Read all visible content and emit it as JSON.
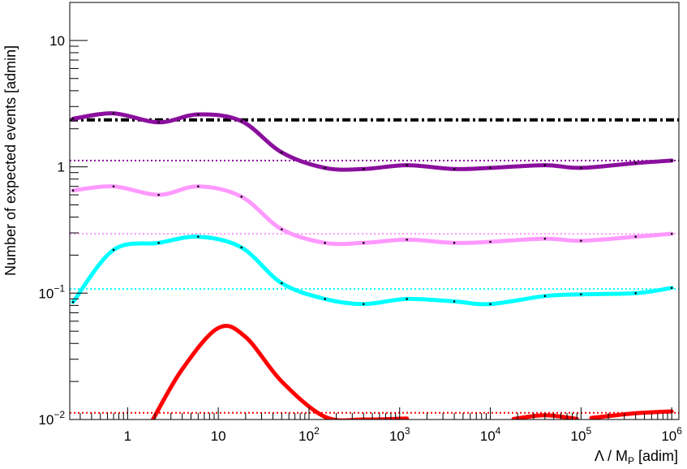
{
  "chart_data": {
    "type": "line",
    "title": "",
    "xlabel": {
      "main": "Λ / M",
      "sub": "P",
      "unit": " [adim]"
    },
    "ylabel": "Number of expected events [admin]",
    "xscale": "log",
    "yscale": "log",
    "xlim": [
      0.23,
      1200000
    ],
    "ylim": [
      0.01,
      20
    ],
    "grid": false,
    "legend": "none",
    "x_tick_labels": [
      {
        "x": 1,
        "base": "1",
        "exp": ""
      },
      {
        "x": 10,
        "base": "10",
        "exp": ""
      },
      {
        "x": 100,
        "base": "10",
        "exp": "2"
      },
      {
        "x": 1000,
        "base": "10",
        "exp": "3"
      },
      {
        "x": 10000,
        "base": "10",
        "exp": "4"
      },
      {
        "x": 100000,
        "base": "10",
        "exp": "5"
      },
      {
        "x": 1000000,
        "base": "10",
        "exp": "6"
      }
    ],
    "y_tick_labels": [
      {
        "y": 0.01,
        "base": "10",
        "exp": "−2"
      },
      {
        "y": 0.1,
        "base": "10",
        "exp": "−1"
      },
      {
        "y": 1,
        "base": "1",
        "exp": ""
      },
      {
        "y": 10,
        "base": "10",
        "exp": ""
      }
    ],
    "series": [
      {
        "color": "#8b0f9e",
        "style": "solid",
        "x": [
          0.25,
          0.7,
          2.2,
          6,
          18,
          50,
          150,
          400,
          1200,
          4000,
          10000,
          40000,
          100000,
          400000,
          1000000
        ],
        "y": [
          2.4,
          2.65,
          2.25,
          2.6,
          2.3,
          1.3,
          0.98,
          0.96,
          1.03,
          0.96,
          0.98,
          1.03,
          0.98,
          1.07,
          1.12
        ]
      },
      {
        "color": "#ff99ff",
        "style": "solid",
        "x": [
          0.25,
          0.7,
          2.2,
          6,
          18,
          50,
          150,
          400,
          1200,
          4000,
          10000,
          40000,
          100000,
          400000,
          1000000
        ],
        "y": [
          0.65,
          0.7,
          0.6,
          0.7,
          0.58,
          0.32,
          0.25,
          0.25,
          0.265,
          0.25,
          0.255,
          0.27,
          0.26,
          0.28,
          0.295
        ]
      },
      {
        "color": "#00ffff",
        "style": "solid",
        "x": [
          0.25,
          0.7,
          2.2,
          6,
          18,
          50,
          150,
          400,
          1200,
          4000,
          10000,
          40000,
          100000,
          400000,
          1000000
        ],
        "y": [
          0.085,
          0.22,
          0.25,
          0.28,
          0.23,
          0.12,
          0.09,
          0.082,
          0.09,
          0.086,
          0.082,
          0.095,
          0.098,
          0.1,
          0.11
        ]
      },
      {
        "color": "#ff0000",
        "style": "solid",
        "x": [
          1.9,
          4,
          10,
          20,
          50,
          150,
          400,
          1200
        ],
        "y": [
          0.01,
          0.025,
          0.053,
          0.045,
          0.02,
          0.0105,
          0.01,
          0.0102
        ]
      },
      {
        "color": "#ff0000",
        "style": "solid",
        "x": [
          18000,
          40000,
          90000
        ],
        "y": [
          0.0101,
          0.0108,
          0.0101
        ]
      },
      {
        "color": "#ff0000",
        "style": "solid",
        "x": [
          130000,
          400000,
          1000000
        ],
        "y": [
          0.0103,
          0.0112,
          0.0116
        ]
      }
    ],
    "reference_lines": [
      {
        "y": 2.35,
        "color": "#000000",
        "style": "dashdot"
      },
      {
        "y": 1.12,
        "color": "#8b0f9e",
        "style": "dotted"
      },
      {
        "y": 0.295,
        "color": "#ff99ff",
        "style": "dotted"
      },
      {
        "y": 0.108,
        "color": "#00ffff",
        "style": "dotted"
      },
      {
        "y": 0.0113,
        "color": "#ff0000",
        "style": "dotted"
      }
    ]
  }
}
